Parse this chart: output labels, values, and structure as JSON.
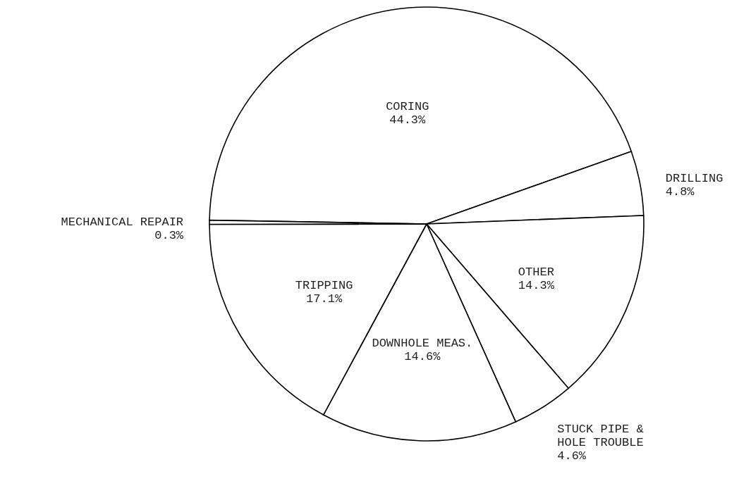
{
  "chart_data": {
    "type": "pie",
    "categories": [
      "CORING",
      "DRILLING",
      "OTHER",
      "STUCK PIPE &\nHOLE TROUBLE",
      "DOWNHOLE MEAS.",
      "TRIPPING",
      "MECHANICAL REPAIR"
    ],
    "values": [
      44.3,
      4.8,
      14.3,
      4.6,
      14.6,
      17.1,
      0.3
    ],
    "value_labels": [
      "44.3%",
      "4.8%",
      "14.3%",
      "4.6%",
      "14.6%",
      "17.1%",
      "0.3%"
    ],
    "colors": [
      "#ffffff",
      "#ffffff",
      "#ffffff",
      "#ffffff",
      "#ffffff",
      "#ffffff",
      "#ffffff"
    ]
  }
}
